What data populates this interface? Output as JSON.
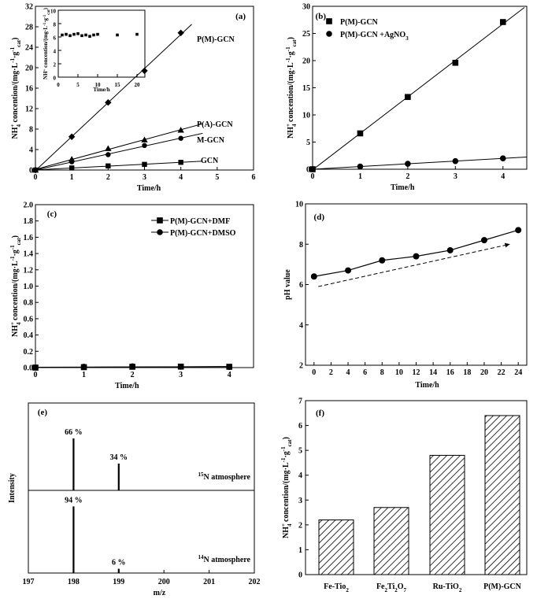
{
  "chart_data": [
    {
      "id": "a",
      "panel_label": "(a)",
      "type": "line",
      "xlabel": "Time/h",
      "ylabel": "NH4+ concention/(mg·L-1·g cat-1)",
      "xlim": [
        0,
        6
      ],
      "ylim": [
        0,
        32
      ],
      "xticks": [
        0,
        1,
        2,
        3,
        4,
        5,
        6
      ],
      "yticks": [
        0,
        4,
        8,
        12,
        16,
        20,
        24,
        28,
        32
      ],
      "series": [
        {
          "name": "P(M)-GCN",
          "marker": "diamond",
          "x": [
            0,
            1,
            2,
            3,
            4
          ],
          "y": [
            0,
            6.5,
            13.2,
            19.4,
            26.8
          ]
        },
        {
          "name": "P(A)-GCN",
          "marker": "triangle",
          "x": [
            0,
            1,
            2,
            3,
            4
          ],
          "y": [
            0,
            2.1,
            4.2,
            5.9,
            7.8
          ]
        },
        {
          "name": "M-GCN",
          "marker": "circle",
          "x": [
            0,
            1,
            2,
            3,
            4
          ],
          "y": [
            0,
            1.6,
            3.0,
            4.8,
            6.2
          ]
        },
        {
          "name": "GCN",
          "marker": "square",
          "x": [
            0,
            1,
            2,
            3,
            4
          ],
          "y": [
            0,
            0.4,
            0.8,
            1.1,
            1.5
          ]
        }
      ],
      "inset": {
        "type": "scatter",
        "xlabel": "Time/h",
        "ylabel": "NH4+ concention/(mg·L-1·g cat-1)",
        "xlim": [
          0,
          22
        ],
        "ylim": [
          0,
          10
        ],
        "xticks": [
          0,
          5,
          10,
          15,
          20
        ],
        "yticks": [
          0,
          2,
          4,
          6,
          8,
          10
        ],
        "x": [
          1,
          2,
          3,
          4,
          5,
          6,
          7,
          8,
          9,
          10,
          15,
          20
        ],
        "y": [
          6.3,
          6.4,
          6.2,
          6.4,
          6.5,
          6.2,
          6.3,
          6.1,
          6.3,
          6.4,
          6.3,
          6.4
        ]
      }
    },
    {
      "id": "b",
      "panel_label": "(b)",
      "type": "line",
      "xlabel": "Time/h",
      "ylabel": "NH4+ concention/(mg·L-1·g cat-1)",
      "xlim": [
        0,
        4.5
      ],
      "ylim": [
        0,
        30
      ],
      "xticks": [
        0,
        1,
        2,
        3,
        4
      ],
      "yticks": [
        0,
        5,
        10,
        15,
        20,
        25,
        30
      ],
      "legend_position": "top-left",
      "series": [
        {
          "name": "P(M)-GCN",
          "marker": "square",
          "x": [
            0,
            1,
            2,
            3,
            4
          ],
          "y": [
            0,
            6.6,
            13.3,
            19.6,
            27.1
          ]
        },
        {
          "name": "P(M)-GCN +AgNO3",
          "marker": "circle",
          "x": [
            0,
            1,
            2,
            3,
            4
          ],
          "y": [
            0,
            0.5,
            1.0,
            1.5,
            2.0
          ]
        }
      ]
    },
    {
      "id": "c",
      "panel_label": "(c)",
      "type": "line",
      "xlabel": "Time/h",
      "ylabel": "NH4+ concention/(mg·L-1·g cat-1)",
      "xlim": [
        0,
        4.5
      ],
      "ylim": [
        0,
        2.0
      ],
      "xticks": [
        0,
        1,
        2,
        3,
        4
      ],
      "yticks": [
        0.0,
        0.2,
        0.4,
        0.6,
        0.8,
        1.0,
        1.2,
        1.4,
        1.6,
        1.8,
        2.0
      ],
      "legend_position": "top-right",
      "series": [
        {
          "name": "P(M)-GCN+DMF",
          "marker": "square",
          "x": [
            0,
            1,
            2,
            3,
            4
          ],
          "y": [
            0.0,
            0.005,
            0.01,
            0.012,
            0.01
          ]
        },
        {
          "name": "P(M)-GCN+DMSO",
          "marker": "circle",
          "x": [
            0,
            1,
            2,
            3,
            4
          ],
          "y": [
            0.0,
            0.01,
            0.015,
            0.01,
            0.008
          ]
        }
      ]
    },
    {
      "id": "d",
      "panel_label": "(d)",
      "type": "line",
      "xlabel": "Time/h",
      "ylabel": "pH value",
      "xlim": [
        -1,
        25
      ],
      "ylim": [
        2,
        10
      ],
      "xticks": [
        0,
        2,
        4,
        6,
        8,
        10,
        12,
        14,
        16,
        18,
        20,
        22,
        24
      ],
      "yticks": [
        2,
        4,
        6,
        8,
        10
      ],
      "series": [
        {
          "name": "",
          "marker": "circle",
          "x": [
            0,
            4,
            8,
            12,
            16,
            20,
            24
          ],
          "y": [
            6.4,
            6.7,
            7.2,
            7.4,
            7.7,
            8.2,
            8.7
          ]
        }
      ],
      "trend_arrow": {
        "x": [
          0.5,
          23
        ],
        "y": [
          5.9,
          8.0
        ]
      }
    },
    {
      "id": "e",
      "panel_label": "(e)",
      "type": "bar",
      "xlabel": "m/z",
      "ylabel": "Intensity",
      "xlim": [
        197,
        202
      ],
      "xticks": [
        197,
        198,
        199,
        200,
        201,
        202
      ],
      "panels": [
        {
          "name": "15N atmosphere",
          "peaks": [
            {
              "mz": 198,
              "percent": 66,
              "label": "66 %"
            },
            {
              "mz": 199,
              "percent": 34,
              "label": "34 %"
            }
          ]
        },
        {
          "name": "14N atmosphere",
          "peaks": [
            {
              "mz": 198,
              "percent": 94,
              "label": "94 %"
            },
            {
              "mz": 199,
              "percent": 6,
              "label": "6 %"
            }
          ]
        }
      ]
    },
    {
      "id": "f",
      "panel_label": "(f)",
      "type": "bar",
      "xlabel": "",
      "ylabel": "NH4+ concention/(mg·L-1·g cat-1)",
      "ylim": [
        0,
        7
      ],
      "yticks": [
        0,
        1,
        2,
        3,
        4,
        5,
        6,
        7
      ],
      "categories": [
        "Fe-Tio2",
        "Fe2Ti2O7",
        "Ru-TiO2",
        "P(M)-GCN"
      ],
      "values": [
        2.2,
        2.7,
        4.8,
        6.4
      ]
    }
  ],
  "labels": {
    "nh4_main": "NH",
    "nh4_sup": "+",
    "nh4_sub": "4",
    "nh4_rest": " concention/(mg·L",
    "nh4_m1": "-1",
    "nh4_dot": "·g",
    "nh4_cat": "cat",
    "nh4_close": ")",
    "n15_sup": "15",
    "n14_sup": "14",
    "atm": "N atmosphere",
    "agno3_base": "P(M)-GCN +AgNO",
    "sub3": "3",
    "sub2": "2",
    "sub7": "7",
    "fe_tio": "Fe-Tio",
    "fe2ti2": "Fe",
    "ti2": "Ti",
    "o7": "O",
    "ru_tio": "Ru-TiO",
    "pmgcn": "P(M)-GCN"
  }
}
